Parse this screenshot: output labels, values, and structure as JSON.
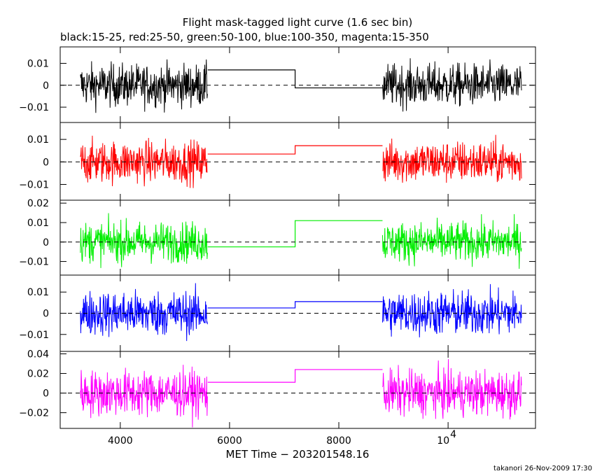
{
  "chart_data": {
    "type": "line",
    "title": "Flight mask-tagged light curve (1.6 sec bin)",
    "subtitle": "black:15-25, red:25-50, green:50-100, blue:100-350, magenta:15-350",
    "xlabel": "MET Time − 203201548.16",
    "footer": "takanori 26-Nov-2009 17:30",
    "xlim": [
      2900,
      11600
    ],
    "x_ticks": [
      {
        "value": 4000,
        "label": "4000"
      },
      {
        "value": 6000,
        "label": "6000"
      },
      {
        "value": 8000,
        "label": "8000"
      },
      {
        "value": 10000,
        "label": "10",
        "exponent": "4"
      }
    ],
    "data_segments": [
      [
        3270,
        5600
      ],
      [
        8800,
        11350
      ]
    ],
    "gap_steps": [
      [
        5600,
        7200
      ],
      [
        7200,
        8800
      ]
    ],
    "panels": [
      {
        "name": "15-25",
        "color": "#000000",
        "ylim": [
          -0.017,
          0.0175
        ],
        "ticks": [
          {
            "value": 0.01,
            "label": "0.01"
          },
          {
            "value": 0,
            "label": "0"
          },
          {
            "value": -0.01,
            "label": "−0.01"
          }
        ],
        "noise_amplitude": 0.0165,
        "step_values": [
          0.007,
          -0.0012
        ]
      },
      {
        "name": "25-50",
        "color": "#ff0000",
        "ylim": [
          -0.017,
          0.0175
        ],
        "ticks": [
          {
            "value": 0.01,
            "label": "0.01"
          },
          {
            "value": 0,
            "label": "0"
          },
          {
            "value": -0.01,
            "label": "−0.01"
          }
        ],
        "noise_amplitude": 0.016,
        "step_values": [
          0.0035,
          0.0072
        ]
      },
      {
        "name": "50-100",
        "color": "#00ee00",
        "ylim": [
          -0.017,
          0.0215
        ],
        "ticks": [
          {
            "value": 0.02,
            "label": "0.02"
          },
          {
            "value": 0.01,
            "label": "0.01"
          },
          {
            "value": 0,
            "label": "0"
          },
          {
            "value": -0.01,
            "label": "−0.01"
          }
        ],
        "noise_amplitude": 0.0175,
        "step_values": [
          -0.0025,
          0.011
        ]
      },
      {
        "name": "100-350",
        "color": "#0000ff",
        "ylim": [
          -0.018,
          0.018
        ],
        "ticks": [
          {
            "value": 0.01,
            "label": "0.01"
          },
          {
            "value": 0,
            "label": "0"
          },
          {
            "value": -0.01,
            "label": "−0.01"
          }
        ],
        "noise_amplitude": 0.018,
        "step_values": [
          0.0025,
          0.0055
        ]
      },
      {
        "name": "15-350",
        "color": "#ff00ff",
        "ylim": [
          -0.036,
          0.0425
        ],
        "ticks": [
          {
            "value": 0.04,
            "label": "0.04"
          },
          {
            "value": 0.02,
            "label": "0.02"
          },
          {
            "value": 0,
            "label": "0"
          },
          {
            "value": -0.02,
            "label": "−0.02"
          }
        ],
        "noise_amplitude": 0.04,
        "step_values": [
          0.011,
          0.024
        ]
      }
    ],
    "grid": false
  }
}
